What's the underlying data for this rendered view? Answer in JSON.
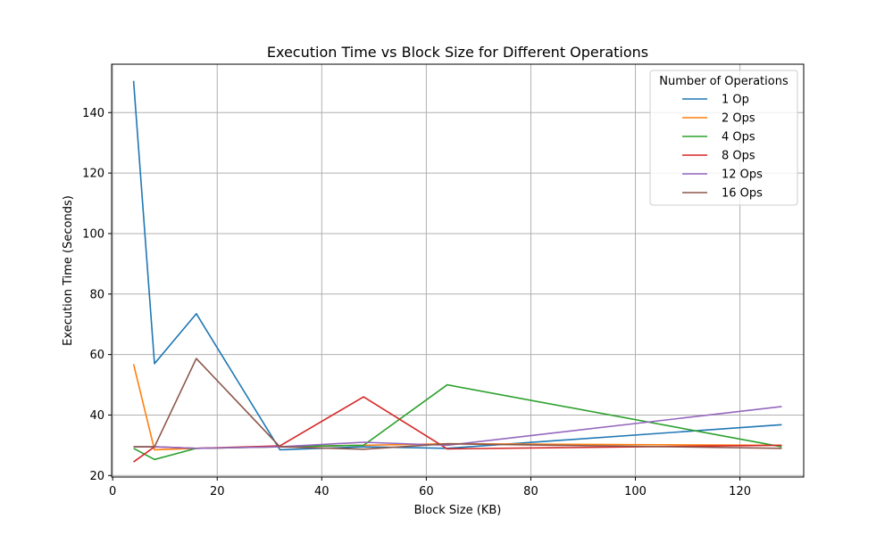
{
  "chart_data": {
    "type": "line",
    "title": "Execution Time vs Block Size for Different Operations",
    "xlabel": "Block Size (KB)",
    "ylabel": "Execution Time (Seconds)",
    "xlim": [
      -0.2,
      132.2
    ],
    "ylim": [
      19.5,
      156
    ],
    "xticks": [
      0,
      20,
      40,
      60,
      80,
      100,
      120
    ],
    "yticks": [
      20,
      40,
      60,
      80,
      100,
      120,
      140
    ],
    "grid": true,
    "legend": {
      "title": "Number of Operations",
      "placement": "top-right"
    },
    "x": [
      4,
      8,
      16,
      32,
      48,
      64,
      128
    ],
    "series": [
      {
        "name": "1 Op",
        "color": "#1f77b4",
        "values": [
          150.5,
          57.0,
          73.5,
          28.5,
          29.5,
          29.0,
          36.8
        ]
      },
      {
        "name": "2 Ops",
        "color": "#ff7f0e",
        "values": [
          56.8,
          28.5,
          29.0,
          29.5,
          30.0,
          30.5,
          30.0
        ]
      },
      {
        "name": "4 Ops",
        "color": "#2ca02c",
        "values": [
          29.0,
          25.3,
          29.0,
          29.5,
          30.0,
          50.0,
          29.5
        ]
      },
      {
        "name": "8 Ops",
        "color": "#d62728",
        "values": [
          24.5,
          29.5,
          29.0,
          29.8,
          46.0,
          28.8,
          30.0
        ]
      },
      {
        "name": "12 Ops",
        "color": "#9467bd",
        "values": [
          29.5,
          29.5,
          29.0,
          29.5,
          31.0,
          30.0,
          42.8
        ]
      },
      {
        "name": "16 Ops",
        "color": "#8c564b",
        "values": [
          29.5,
          29.5,
          58.7,
          29.5,
          28.7,
          30.5,
          29.0
        ]
      }
    ]
  }
}
